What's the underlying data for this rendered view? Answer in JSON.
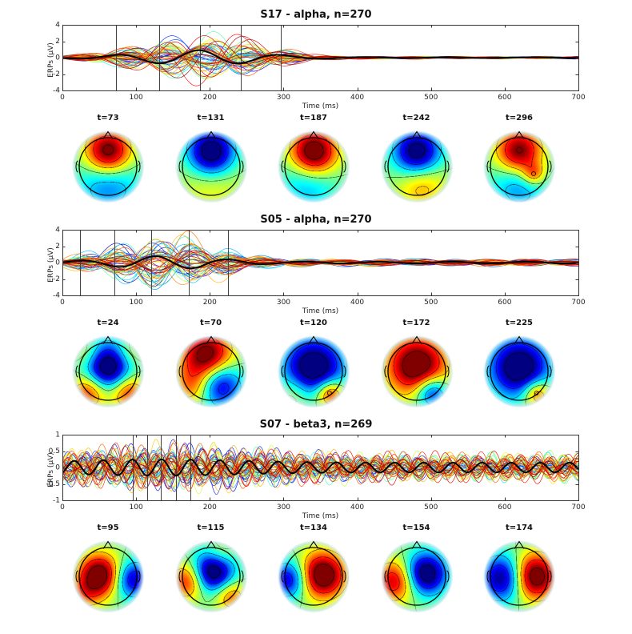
{
  "figure": {
    "background": "#ffffff",
    "trace_colormap": "jet",
    "mean_trace_color": "#000000"
  },
  "chart_data": [
    {
      "type": "line",
      "title": "S17 - alpha, n=270",
      "xlabel": "Time (ms)",
      "ylabel": "ERPs (μV)",
      "xlim": [
        0,
        700
      ],
      "ylim": [
        -4,
        4
      ],
      "xticks": [
        0,
        100,
        200,
        300,
        400,
        500,
        600,
        700
      ],
      "yticks": [
        -4,
        -2,
        0,
        2,
        4
      ],
      "marker_times_ms": [
        73,
        131,
        187,
        242,
        296
      ],
      "topo_labels": [
        "t=73",
        "t=131",
        "t=187",
        "t=242",
        "t=296"
      ],
      "n_channel_traces": 60,
      "wave": {
        "freq_hz": 8.95,
        "amp_uv": 2.7,
        "mean_amp_uv": 0.85,
        "env_base": 0.06,
        "env_bump": 1.0,
        "env_peak_ms": 185,
        "env_width_ms": 105,
        "seed": 17
      },
      "topo_fields": [
        {
          "sources": [
            {
              "x": 0,
              "y": -0.5,
              "a": 2.5,
              "s": 0.55
            },
            {
              "x": 0,
              "y": 0.55,
              "a": -1.1,
              "s": 0.75
            }
          ]
        },
        {
          "sources": [
            {
              "x": 0,
              "y": -0.5,
              "a": -2.6,
              "s": 0.55
            },
            {
              "x": 0,
              "y": 0.6,
              "a": 0.5,
              "s": 0.8
            }
          ]
        },
        {
          "sources": [
            {
              "x": 0,
              "y": -0.5,
              "a": 2.6,
              "s": 0.55
            },
            {
              "x": -0.2,
              "y": 0.6,
              "a": -0.8,
              "s": 0.7
            }
          ]
        },
        {
          "sources": [
            {
              "x": 0,
              "y": -0.5,
              "a": -2.4,
              "s": 0.55
            },
            {
              "x": 0.15,
              "y": 0.6,
              "a": 0.9,
              "s": 0.6
            }
          ]
        },
        {
          "sources": [
            {
              "x": 0,
              "y": -0.5,
              "a": 2.3,
              "s": 0.55
            },
            {
              "x": 0,
              "y": 0.6,
              "a": -1.0,
              "s": 0.7
            },
            {
              "x": 0.5,
              "y": 0.25,
              "a": 1.2,
              "s": 0.28
            }
          ],
          "marker": [
            0.5,
            0.25
          ]
        }
      ]
    },
    {
      "type": "line",
      "title": "S05 - alpha, n=270",
      "xlabel": "Time (ms)",
      "ylabel": "ERPs (μV)",
      "xlim": [
        0,
        700
      ],
      "ylim": [
        -4,
        4
      ],
      "xticks": [
        0,
        100,
        200,
        300,
        400,
        500,
        600,
        700
      ],
      "yticks": [
        -4,
        -2,
        0,
        2,
        4
      ],
      "marker_times_ms": [
        24,
        70,
        120,
        172,
        225
      ],
      "topo_labels": [
        "t=24",
        "t=70",
        "t=120",
        "t=172",
        "t=225"
      ],
      "n_channel_traces": 60,
      "wave": {
        "freq_hz": 9.9,
        "amp_uv": 3.0,
        "mean_amp_uv": 0.7,
        "env_base": 0.14,
        "env_bump": 1.0,
        "env_peak_ms": 140,
        "env_width_ms": 90,
        "seed": 5
      },
      "topo_fields": [
        {
          "sources": [
            {
              "x": 0,
              "y": -0.15,
              "a": -2.8,
              "s": 0.6
            },
            {
              "x": -0.65,
              "y": 0.65,
              "a": 1.6,
              "s": 0.45
            },
            {
              "x": 0.65,
              "y": 0.65,
              "a": 1.6,
              "s": 0.45
            },
            {
              "x": -0.7,
              "y": -0.6,
              "a": 0.8,
              "s": 0.4
            },
            {
              "x": 0.7,
              "y": -0.6,
              "a": 0.8,
              "s": 0.4
            }
          ]
        },
        {
          "sources": [
            {
              "x": -0.15,
              "y": -0.55,
              "a": 2.4,
              "s": 0.6
            },
            {
              "x": -0.6,
              "y": 0.5,
              "a": 1.2,
              "s": 0.5
            },
            {
              "x": 0.25,
              "y": 0.45,
              "a": -2.0,
              "s": 0.55
            }
          ]
        },
        {
          "sources": [
            {
              "x": 0,
              "y": -0.15,
              "a": -2.6,
              "s": 0.7
            },
            {
              "x": 0.55,
              "y": 0.75,
              "a": 1.8,
              "s": 0.35
            },
            {
              "x": -0.6,
              "y": 0.7,
              "a": 0.6,
              "s": 0.4
            }
          ],
          "marker": [
            0.55,
            0.75
          ]
        },
        {
          "sources": [
            {
              "x": 0,
              "y": -0.2,
              "a": 2.6,
              "s": 0.7
            },
            {
              "x": 0.5,
              "y": 0.7,
              "a": -1.8,
              "s": 0.4
            }
          ]
        },
        {
          "sources": [
            {
              "x": 0,
              "y": -0.15,
              "a": -2.6,
              "s": 0.7
            },
            {
              "x": 0.6,
              "y": 0.75,
              "a": 1.5,
              "s": 0.35
            }
          ],
          "marker": [
            0.6,
            0.75
          ]
        }
      ]
    },
    {
      "type": "line",
      "title": "S07 - beta3, n=269",
      "xlabel": "Time (ms)",
      "ylabel": "ERPs (μV)",
      "xlim": [
        0,
        700
      ],
      "ylim": [
        -1,
        1
      ],
      "xticks": [
        0,
        100,
        200,
        300,
        400,
        500,
        600,
        700
      ],
      "yticks": [
        -1,
        -0.5,
        0,
        0.5,
        1
      ],
      "marker_times_ms": [
        95,
        115,
        134,
        154,
        174
      ],
      "topo_labels": [
        "t=95",
        "t=115",
        "t=134",
        "t=154",
        "t=174"
      ],
      "n_channel_traces": 60,
      "wave": {
        "freq_hz": 25.3,
        "amp_uv": 0.55,
        "mean_amp_uv": 0.2,
        "env_base": 0.75,
        "env_bump": 0.5,
        "env_peak_ms": 135,
        "env_width_ms": 150,
        "seed": 7
      },
      "topo_fields": [
        {
          "sources": [
            {
              "x": -0.3,
              "y": -0.05,
              "a": 2.5,
              "s": 0.5
            },
            {
              "x": 0.85,
              "y": 0.1,
              "a": -1.8,
              "s": 0.45
            },
            {
              "x": -0.8,
              "y": 0.6,
              "a": 0.8,
              "s": 0.4
            }
          ]
        },
        {
          "sources": [
            {
              "x": 0.05,
              "y": -0.15,
              "a": -2.6,
              "s": 0.5
            },
            {
              "x": -0.8,
              "y": 0.15,
              "a": 1.6,
              "s": 0.45
            },
            {
              "x": 0.65,
              "y": 0.65,
              "a": 1.2,
              "s": 0.4
            },
            {
              "x": 0.3,
              "y": -0.8,
              "a": 0.6,
              "s": 0.35
            }
          ]
        },
        {
          "sources": [
            {
              "x": 0.3,
              "y": -0.05,
              "a": 2.6,
              "s": 0.55
            },
            {
              "x": -0.85,
              "y": 0.1,
              "a": -1.8,
              "s": 0.45
            }
          ]
        },
        {
          "sources": [
            {
              "x": 0.3,
              "y": -0.1,
              "a": -2.5,
              "s": 0.5
            },
            {
              "x": -0.75,
              "y": 0.15,
              "a": 1.8,
              "s": 0.5
            }
          ]
        },
        {
          "sources": [
            {
              "x": 0.5,
              "y": 0.0,
              "a": 2.6,
              "s": 0.55
            },
            {
              "x": -0.55,
              "y": 0.05,
              "a": -2.2,
              "s": 0.55
            }
          ]
        }
      ]
    }
  ]
}
